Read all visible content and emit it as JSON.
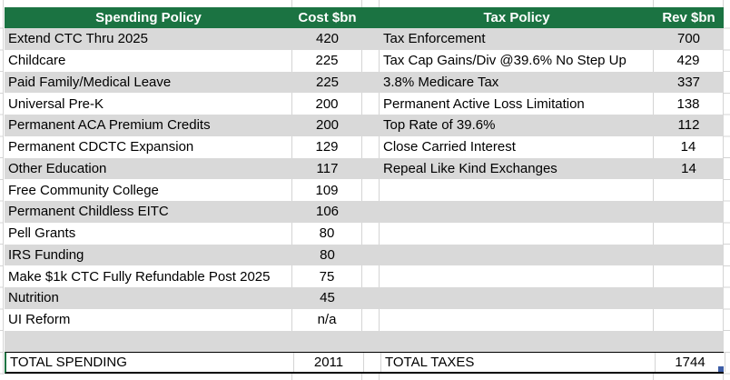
{
  "sheet": {
    "headers": {
      "spending": "Spending Policy",
      "cost": "Cost $bn",
      "tax": "Tax Policy",
      "rev": "Rev $bn"
    },
    "rows": [
      {
        "spending": "Extend CTC Thru 2025",
        "cost": "420",
        "tax": "Tax Enforcement",
        "rev": "700"
      },
      {
        "spending": "Childcare",
        "cost": "225",
        "tax": "Tax Cap Gains/Div @39.6% No Step Up",
        "rev": "429"
      },
      {
        "spending": "Paid Family/Medical Leave",
        "cost": "225",
        "tax": "3.8% Medicare Tax",
        "rev": "337"
      },
      {
        "spending": "Universal Pre-K",
        "cost": "200",
        "tax": "Permanent Active Loss Limitation",
        "rev": "138"
      },
      {
        "spending": "Permanent ACA Premium Credits",
        "cost": "200",
        "tax": "Top Rate of 39.6%",
        "rev": "112"
      },
      {
        "spending": "Permanent CDCTC Expansion",
        "cost": "129",
        "tax": "Close Carried Interest",
        "rev": "14"
      },
      {
        "spending": "Other Education",
        "cost": "117",
        "tax": "Repeal Like Kind Exchanges",
        "rev": "14"
      },
      {
        "spending": "Free Community College",
        "cost": "109",
        "tax": "",
        "rev": ""
      },
      {
        "spending": "Permanent Childless EITC",
        "cost": "106",
        "tax": "",
        "rev": ""
      },
      {
        "spending": "Pell Grants",
        "cost": "80",
        "tax": "",
        "rev": ""
      },
      {
        "spending": "IRS Funding",
        "cost": "80",
        "tax": "",
        "rev": ""
      },
      {
        "spending": "Make $1k CTC Fully Refundable Post 2025",
        "cost": "75",
        "tax": "",
        "rev": ""
      },
      {
        "spending": "Nutrition",
        "cost": "45",
        "tax": "",
        "rev": ""
      },
      {
        "spending": "UI Reform",
        "cost": "n/a",
        "tax": "",
        "rev": ""
      },
      {
        "spending": "",
        "cost": "",
        "tax": "",
        "rev": ""
      }
    ],
    "totals": {
      "spending_label": "TOTAL SPENDING",
      "spending_value": "2011",
      "tax_label": "TOTAL TAXES",
      "tax_value": "1744"
    }
  },
  "icons": {
    "fill_handle": "selection-fill-handle"
  },
  "colors": {
    "header_bg": "#1B7342",
    "header_text": "#FFFFFF",
    "band": "#D9D9D9",
    "gridline": "#D4D4D4",
    "total_border": "#000000",
    "accent_green": "#1B7342",
    "fill_handle": "#3D5DA6",
    "text": "#000000"
  }
}
